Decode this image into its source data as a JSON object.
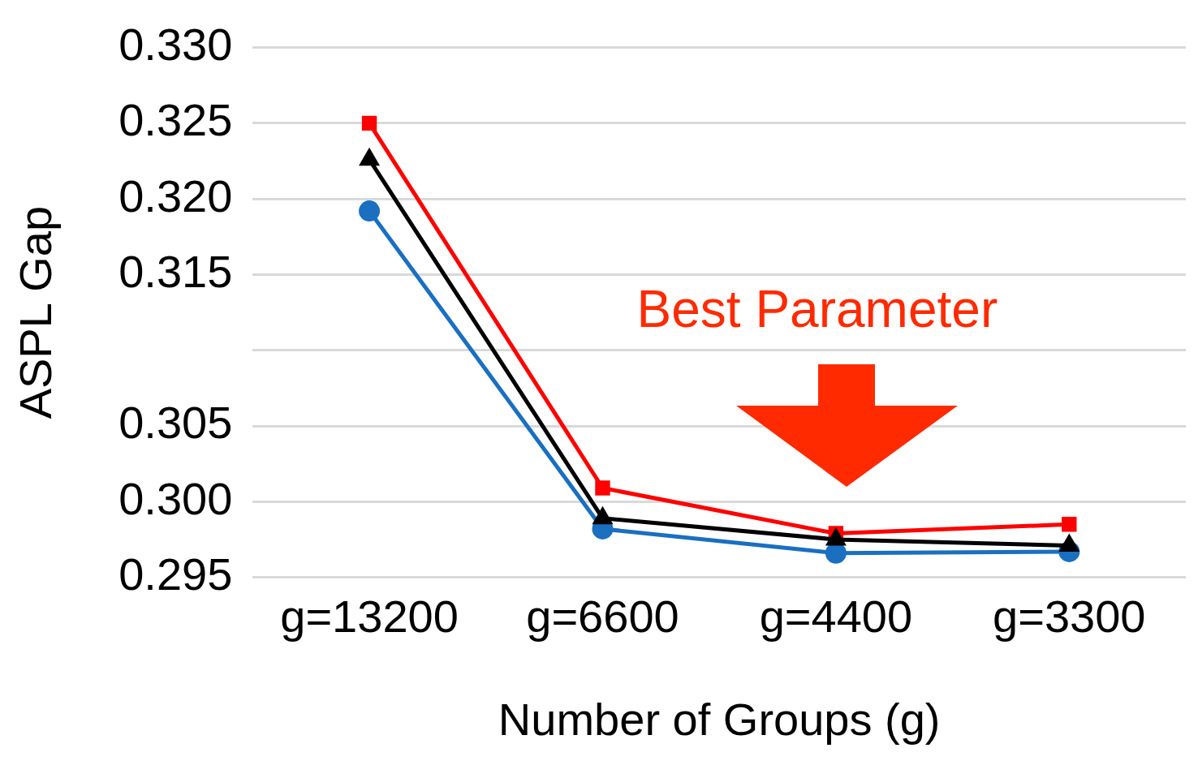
{
  "chart_data": {
    "type": "line",
    "xlabel": "Number of Groups (g)",
    "ylabel": "ASPL Gap",
    "categories": [
      "g=13200",
      "g=6600",
      "g=4400",
      "g=3300"
    ],
    "series": [
      {
        "color": "#ff0000",
        "marker": "square",
        "values": [
          0.325,
          0.3009,
          0.2979,
          0.2985
        ]
      },
      {
        "color": "#000000",
        "marker": "triangle",
        "values": [
          0.3226,
          0.2989,
          0.2975,
          0.2971
        ]
      },
      {
        "color": "#1a6fc0",
        "marker": "circle",
        "values": [
          0.3192,
          0.2982,
          0.2966,
          0.2967
        ]
      }
    ],
    "ylim": [
      0.295,
      0.33
    ],
    "yticks": [
      {
        "value": 0.295,
        "label": "0.295"
      },
      {
        "value": 0.3,
        "label": "0.300"
      },
      {
        "value": 0.305,
        "label": "0.305"
      },
      {
        "value": 0.31,
        "label": null
      },
      {
        "value": 0.315,
        "label": "0.315"
      },
      {
        "value": 0.32,
        "label": "0.320"
      },
      {
        "value": 0.325,
        "label": "0.325"
      },
      {
        "value": 0.33,
        "label": "0.330"
      }
    ],
    "grid": "y",
    "legend": false,
    "line_style": "solid",
    "annotations": [
      "Best Parameter"
    ]
  }
}
